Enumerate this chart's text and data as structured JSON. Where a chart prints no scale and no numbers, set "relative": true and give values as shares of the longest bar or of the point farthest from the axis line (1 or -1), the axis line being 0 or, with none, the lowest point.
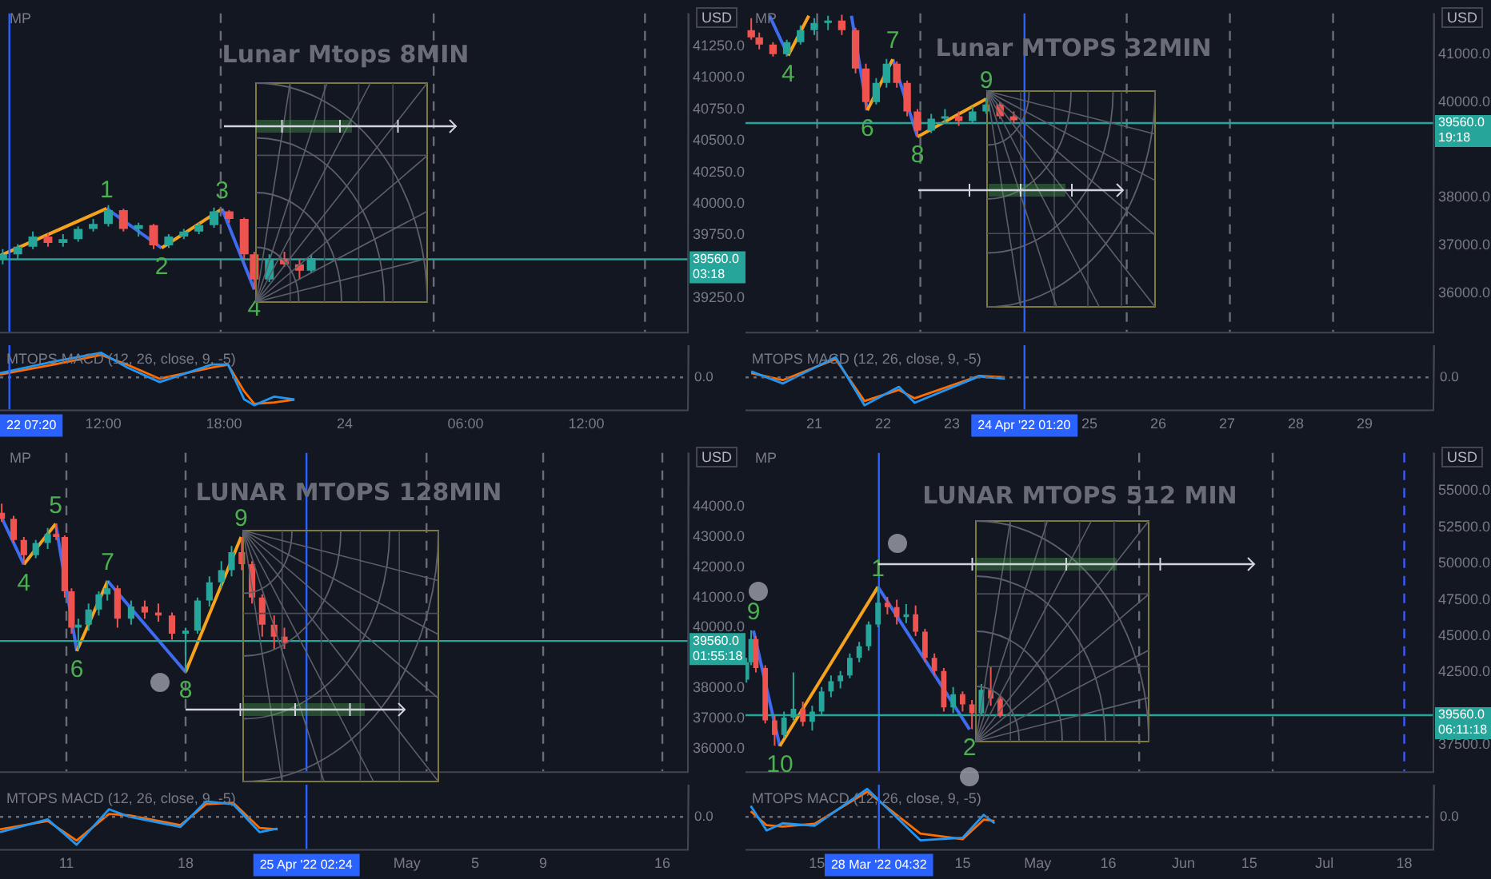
{
  "chart_data": [
    {
      "type": "candlestick",
      "title": "Lunar Mtops 8MIN",
      "ylabel": "USD",
      "tick_labels": "y",
      "x": [
        "2022-04-23T07:00",
        "2022-04-23T07:45",
        "2022-04-23T08:30",
        "2022-04-23T09:15",
        "2022-04-23T10:00",
        "2022-04-23T10:45",
        "2022-04-23T11:30",
        "2022-04-23T12:15",
        "2022-04-23T13:00",
        "2022-04-23T13:45",
        "2022-04-23T14:30",
        "2022-04-23T15:15",
        "2022-04-23T16:00",
        "2022-04-23T16:45",
        "2022-04-23T17:30",
        "2022-04-23T18:15",
        "2022-04-23T19:00",
        "2022-04-23T19:30",
        "2022-04-23T20:15",
        "2022-04-23T21:00",
        "2022-04-23T21:45",
        "2022-04-23T22:20"
      ],
      "ohlc": [
        [
          39560,
          39640,
          39520,
          39600
        ],
        [
          39600,
          39680,
          39560,
          39660
        ],
        [
          39660,
          39780,
          39640,
          39740
        ],
        [
          39740,
          39770,
          39660,
          39690
        ],
        [
          39690,
          39760,
          39660,
          39720
        ],
        [
          39720,
          39820,
          39700,
          39800
        ],
        [
          39800,
          39880,
          39780,
          39840
        ],
        [
          39840,
          39990,
          39820,
          39950
        ],
        [
          39950,
          39960,
          39780,
          39800
        ],
        [
          39800,
          39850,
          39740,
          39830
        ],
        [
          39830,
          39840,
          39640,
          39670
        ],
        [
          39670,
          39760,
          39650,
          39740
        ],
        [
          39740,
          39800,
          39720,
          39780
        ],
        [
          39780,
          39850,
          39760,
          39830
        ],
        [
          39830,
          39970,
          39810,
          39940
        ],
        [
          39940,
          39950,
          39850,
          39880
        ],
        [
          39880,
          39890,
          39560,
          39600
        ],
        [
          39600,
          39620,
          39320,
          39400
        ],
        [
          39400,
          39600,
          39380,
          39560
        ],
        [
          39560,
          39620,
          39500,
          39520
        ],
        [
          39520,
          39560,
          39400,
          39470
        ],
        [
          39470,
          39600,
          39450,
          39570
        ]
      ],
      "series": [
        {
          "type": "line",
          "color": "#f7a21b",
          "x": [
            "2022-04-23T06:52",
            "2022-04-23T12:10",
            "2022-04-23T13:00",
            "2022-04-23T14:54",
            "2022-04-23T17:54"
          ],
          "values": [
            39588,
            39963,
            null,
            39650,
            39960
          ]
        },
        {
          "type": "line",
          "color": "#3d6cf0",
          "x": [
            "2022-04-23T12:10",
            "2022-04-23T14:54",
            "2022-04-23T16:00",
            "2022-04-23T17:54",
            "2022-04-23T19:30"
          ],
          "values": [
            39963,
            39650,
            null,
            39960,
            39320
          ]
        }
      ],
      "xlim": [
        "2022-04-23T06:52",
        "2022-04-24T17:03"
      ],
      "ylim": [
        38985,
        41510
      ],
      "yticks": [
        {
          "value": 39250,
          "label": "39250.0"
        },
        {
          "value": 39750,
          "label": "39750.0"
        },
        {
          "value": 40000,
          "label": "40000.0"
        },
        {
          "value": 40250,
          "label": "40250.0"
        },
        {
          "value": 40500,
          "label": "40500.0"
        },
        {
          "value": 40750,
          "label": "40750.0"
        },
        {
          "value": 41000,
          "label": "41000.0"
        },
        {
          "value": 41250,
          "label": "41250.0"
        }
      ],
      "ref_lines": [
        {
          "axis": "x",
          "value": "2022-04-23T17:50",
          "line_style": "dashed"
        },
        {
          "axis": "x",
          "value": "2022-04-24T04:25",
          "line_style": "dashed"
        },
        {
          "axis": "x",
          "value": "2022-04-24T14:55",
          "line_style": "dashed"
        },
        {
          "axis": "x",
          "value": "2022-04-23T07:20",
          "color": "#2962ff"
        },
        {
          "axis": "y",
          "value": 39560,
          "label": "39560.0\n03:18",
          "color": "#26a69a"
        }
      ],
      "annotations": [
        "MP",
        {
          "text": "1",
          "x": "2022-04-23T12:10",
          "y": 39963
        },
        {
          "text": "2",
          "x": "2022-04-23T14:54",
          "y": 39650
        },
        {
          "text": "3",
          "x": "2022-04-23T17:54",
          "y": 39960
        },
        {
          "text": "4",
          "x": "2022-04-23T19:30",
          "y": 39320
        }
      ]
    },
    {
      "type": "line",
      "title": "MTOPS MACD (12, 26, close, 9, -5)",
      "relative": true,
      "xlim": [
        "2022-04-23T06:52",
        "2022-04-24T17:03"
      ],
      "xticks": [
        {
          "value": "2022-04-23T12:00",
          "label": "12:00"
        },
        {
          "value": "2022-04-23T18:00",
          "label": "18:00"
        },
        {
          "value": "2022-04-24T00:00",
          "label": "24"
        },
        {
          "value": "2022-04-24T06:00",
          "label": "06:00"
        },
        {
          "value": "2022-04-24T12:00",
          "label": "12:00"
        }
      ],
      "series": [
        {
          "color": "#2196f3",
          "x": [
            "2022-04-23T06:52",
            "2022-04-23T09:30",
            "2022-04-23T11:54",
            "2022-04-23T13:12",
            "2022-04-23T14:48",
            "2022-04-23T17:24",
            "2022-04-23T18:12",
            "2022-04-23T19:00",
            "2022-04-23T19:30",
            "2022-04-23T20:30",
            "2022-04-23T21:30"
          ],
          "values": [
            0.15,
            0.56,
            0.88,
            0.35,
            -0.17,
            0.46,
            0.46,
            -0.79,
            -1.0,
            -0.69,
            -0.79
          ]
        },
        {
          "color": "#ff6d00",
          "x": [
            "2022-04-23T06:52",
            "2022-04-23T09:30",
            "2022-04-23T11:54",
            "2022-04-23T13:12",
            "2022-04-23T14:48",
            "2022-04-23T17:24",
            "2022-04-23T18:12",
            "2022-04-23T19:00",
            "2022-04-23T19:30",
            "2022-04-23T20:30",
            "2022-04-23T21:30"
          ],
          "values": [
            0.1,
            0.45,
            0.8,
            0.45,
            -0.05,
            0.35,
            0.45,
            -0.5,
            -0.95,
            -0.9,
            -0.8
          ]
        }
      ],
      "ref_lines": [
        {
          "axis": "y",
          "value": 0,
          "label": "0.0",
          "line_style": "dotted"
        },
        {
          "axis": "x",
          "value": "2022-04-23T07:20",
          "label": "22 07:20",
          "color": "#2962ff"
        }
      ]
    },
    {
      "type": "candlestick",
      "title": "Lunar MTOPS 32MIN",
      "ylabel": "USD",
      "tick_labels": "y",
      "x": [
        "2022-04-20T02:00",
        "2022-04-20T04:48",
        "2022-04-20T09:36",
        "2022-04-20T14:24",
        "2022-04-20T19:12",
        "2022-04-21T00:00",
        "2022-04-21T04:48",
        "2022-04-21T09:36",
        "2022-04-21T14:24",
        "2022-04-21T18:00",
        "2022-04-21T21:36",
        "2022-04-22T01:12",
        "2022-04-22T04:48",
        "2022-04-22T08:24",
        "2022-04-22T12:00",
        "2022-04-22T16:48",
        "2022-04-22T21:36",
        "2022-04-23T02:24",
        "2022-04-23T07:12",
        "2022-04-23T12:00",
        "2022-04-23T16:48",
        "2022-04-23T21:36"
      ],
      "ohlc": [
        [
          41500,
          41750,
          41300,
          41350
        ],
        [
          41350,
          41450,
          41100,
          41200
        ],
        [
          41200,
          41250,
          40950,
          41000
        ],
        [
          41000,
          41300,
          40950,
          41250
        ],
        [
          41250,
          41600,
          41200,
          41500
        ],
        [
          41500,
          41750,
          41400,
          41650
        ],
        [
          41650,
          41800,
          41500,
          41700
        ],
        [
          41700,
          41820,
          41400,
          41500
        ],
        [
          41500,
          41550,
          40600,
          40700
        ],
        [
          40700,
          40800,
          39830,
          40000
        ],
        [
          40000,
          40500,
          39950,
          40400
        ],
        [
          40400,
          40900,
          40300,
          40800
        ],
        [
          40800,
          40850,
          40300,
          40400
        ],
        [
          40400,
          40450,
          39700,
          39800
        ],
        [
          39800,
          39850,
          39280,
          39400
        ],
        [
          39400,
          39750,
          39350,
          39650
        ],
        [
          39650,
          39850,
          39550,
          39700
        ],
        [
          39700,
          39800,
          39500,
          39600
        ],
        [
          39600,
          39900,
          39550,
          39800
        ],
        [
          39800,
          40070,
          39750,
          39950
        ],
        [
          39950,
          40000,
          39650,
          39700
        ],
        [
          39700,
          39800,
          39550,
          39620
        ]
      ],
      "series": [
        {
          "type": "line",
          "color": "#f7a21b",
          "x": [
            "2022-04-20T14:53",
            "2022-04-20T22:05",
            "2022-04-21T06:00",
            "2022-04-21T18:29",
            "2022-04-22T03:22",
            "2022-04-22T08:00",
            "2022-04-22T12:00",
            "2022-04-23T12:00"
          ],
          "values": [
            40970,
            41800,
            null,
            39826,
            40894,
            null,
            39274,
            40065
          ]
        },
        {
          "type": "line",
          "color": "#3d6cf0",
          "x": [
            "2022-04-20T08:24",
            "2022-04-20T14:53",
            "2022-04-21T03:00",
            "2022-04-21T12:58",
            "2022-04-21T18:29",
            "2022-04-22T00:00",
            "2022-04-22T03:22",
            "2022-04-22T12:00"
          ],
          "values": [
            41800,
            40970,
            null,
            41800,
            39826,
            null,
            40894,
            39274
          ]
        }
      ],
      "xlim": [
        "2022-04-20T00:00",
        "2022-04-30T00:00"
      ],
      "ylim": [
        35200,
        41850
      ],
      "yticks": [
        {
          "value": 36000,
          "label": "36000.0"
        },
        {
          "value": 37000,
          "label": "37000.0"
        },
        {
          "value": 38000,
          "label": "38000.0"
        },
        {
          "value": 40000,
          "label": "40000.0"
        },
        {
          "value": 41000,
          "label": "41000.0"
        }
      ],
      "ref_lines": [
        {
          "axis": "x",
          "value": "2022-04-21T01:00",
          "line_style": "dashed"
        },
        {
          "axis": "x",
          "value": "2022-04-22T13:00",
          "line_style": "dashed"
        },
        {
          "axis": "x",
          "value": "2022-04-25T13:00",
          "line_style": "dashed"
        },
        {
          "axis": "x",
          "value": "2022-04-27T01:00",
          "line_style": "dashed"
        },
        {
          "axis": "x",
          "value": "2022-04-28T13:00",
          "line_style": "dashed"
        },
        {
          "axis": "x",
          "value": "2022-04-24T01:20",
          "color": "#2962ff"
        },
        {
          "axis": "y",
          "value": 39560,
          "label": "39560.0\n19:18",
          "color": "#26a69a"
        }
      ],
      "annotations": [
        "MP",
        {
          "text": "4",
          "x": "2022-04-20T14:53",
          "y": 40970
        },
        {
          "text": "6",
          "x": "2022-04-21T18:29",
          "y": 39826
        },
        {
          "text": "7",
          "x": "2022-04-22T03:22",
          "y": 40894
        },
        {
          "text": "8",
          "x": "2022-04-22T12:00",
          "y": 39274
        },
        {
          "text": "9",
          "x": "2022-04-23T12:00",
          "y": 40065
        }
      ]
    },
    {
      "type": "line",
      "title": "MTOPS MACD (12, 26, close, 9, -5)",
      "relative": true,
      "xlim": [
        "2022-04-20T00:00",
        "2022-04-30T00:00"
      ],
      "xticks": [
        {
          "value": "2022-04-21",
          "label": "21"
        },
        {
          "value": "2022-04-22",
          "label": "22"
        },
        {
          "value": "2022-04-23",
          "label": "23"
        },
        {
          "value": "2022-04-25",
          "label": "25"
        },
        {
          "value": "2022-04-26",
          "label": "26"
        },
        {
          "value": "2022-04-27",
          "label": "27"
        },
        {
          "value": "2022-04-28",
          "label": "28"
        },
        {
          "value": "2022-04-29",
          "label": "29"
        }
      ],
      "series": [
        {
          "color": "#2196f3",
          "x": [
            "2022-04-20T02:00",
            "2022-04-20T13:00",
            "2022-04-21T07:26",
            "2022-04-21T17:31",
            "2022-04-22T05:31",
            "2022-04-22T11:02",
            "2022-04-23T09:22",
            "2022-04-23T18:29"
          ],
          "values": [
            0.21,
            -0.22,
            0.72,
            -1.0,
            -0.34,
            -0.91,
            0.03,
            -0.05
          ]
        },
        {
          "color": "#ff6d00",
          "x": [
            "2022-04-20T02:00",
            "2022-04-20T13:00",
            "2022-04-21T07:26",
            "2022-04-21T17:31",
            "2022-04-22T05:31",
            "2022-04-22T11:02",
            "2022-04-23T09:22",
            "2022-04-23T18:29"
          ],
          "values": [
            0.15,
            -0.1,
            0.65,
            -0.85,
            -0.45,
            -0.75,
            0.05,
            0.0
          ]
        }
      ],
      "ref_lines": [
        {
          "axis": "y",
          "value": 0,
          "label": "0.0",
          "line_style": "dotted"
        },
        {
          "axis": "x",
          "value": "2022-04-24T01:20",
          "label": "24 Apr '22 01:20",
          "color": "#2962ff"
        }
      ]
    },
    {
      "type": "candlestick",
      "title": "LUNAR MTOPS 128MIN",
      "ylabel": "USD",
      "tick_labels": "y",
      "x": [
        "2022-04-07T04:48",
        "2022-04-07T21:36",
        "2022-04-08T12:00",
        "2022-04-09T04:48",
        "2022-04-09T21:36",
        "2022-04-10T09:36",
        "2022-04-10T21:36",
        "2022-04-11T07:12",
        "2022-04-11T16:48",
        "2022-04-12T07:12",
        "2022-04-12T21:36",
        "2022-04-13T09:36",
        "2022-04-14T00:00",
        "2022-04-14T19:12",
        "2022-04-15T14:24",
        "2022-04-16T09:36",
        "2022-04-17T04:48",
        "2022-04-18T00:00",
        "2022-04-18T16:48",
        "2022-04-19T09:36",
        "2022-04-20T02:24",
        "2022-04-20T16:48",
        "2022-04-21T07:12",
        "2022-04-21T21:36",
        "2022-04-22T12:00",
        "2022-04-23T04:48",
        "2022-04-23T19:12"
      ],
      "ohlc": [
        [
          43800,
          44100,
          43500,
          43600
        ],
        [
          43600,
          43700,
          42800,
          42900
        ],
        [
          42900,
          43000,
          42100,
          42400
        ],
        [
          42400,
          42900,
          42300,
          42800
        ],
        [
          42800,
          43300,
          42600,
          43100
        ],
        [
          43100,
          43450,
          42900,
          43000
        ],
        [
          43000,
          43050,
          41000,
          41200
        ],
        [
          41200,
          41300,
          39800,
          40000
        ],
        [
          40000,
          40300,
          39250,
          40100
        ],
        [
          40100,
          40800,
          39900,
          40600
        ],
        [
          40600,
          41200,
          40400,
          41100
        ],
        [
          41100,
          41550,
          40900,
          41300
        ],
        [
          41300,
          41400,
          40000,
          40300
        ],
        [
          40300,
          40900,
          40100,
          40700
        ],
        [
          40700,
          40900,
          40300,
          40500
        ],
        [
          40500,
          40800,
          40200,
          40400
        ],
        [
          40400,
          40500,
          39600,
          39800
        ],
        [
          39800,
          40000,
          38550,
          39900
        ],
        [
          39900,
          41000,
          39800,
          40900
        ],
        [
          40900,
          41700,
          40700,
          41500
        ],
        [
          41500,
          42200,
          41300,
          41900
        ],
        [
          41900,
          42700,
          41700,
          42500
        ],
        [
          42500,
          43000,
          41900,
          42100
        ],
        [
          42100,
          42200,
          40800,
          41000
        ],
        [
          41000,
          41100,
          39700,
          40100
        ],
        [
          40100,
          40400,
          39300,
          39700
        ],
        [
          39700,
          40000,
          39300,
          39500
        ]
      ],
      "series": [
        {
          "type": "line",
          "color": "#f7a21b",
          "x": [
            "2022-04-08T12:00",
            "2022-04-10T08:53",
            "2022-04-11T00:00",
            "2022-04-11T14:38",
            "2022-04-13T10:05",
            "2022-04-15T00:00",
            "2022-04-18T00:00",
            "2022-04-21T06:14"
          ],
          "values": [
            42092,
            43437,
            null,
            39228,
            41544,
            null,
            38534,
            43000
          ]
        },
        {
          "type": "line",
          "color": "#3d6cf0",
          "x": [
            "2022-04-07T02:24",
            "2022-04-08T12:00",
            "2022-04-09T00:00",
            "2022-04-10T08:53",
            "2022-04-11T14:38",
            "2022-04-12T00:00",
            "2022-04-13T10:05",
            "2022-04-18T00:00"
          ],
          "values": [
            43757,
            42092,
            null,
            43437,
            39228,
            null,
            41544,
            38534
          ]
        }
      ],
      "xlim": [
        "2022-04-07T02:24",
        "2022-05-17T12:00"
      ],
      "ylim": [
        35250,
        45780
      ],
      "yticks": [
        {
          "value": 36000,
          "label": "36000.0"
        },
        {
          "value": 37000,
          "label": "37000.0"
        },
        {
          "value": 38000,
          "label": "38000.0"
        },
        {
          "value": 40000,
          "label": "40000.0"
        },
        {
          "value": 41000,
          "label": "41000.0"
        },
        {
          "value": 42000,
          "label": "42000.0"
        },
        {
          "value": 43000,
          "label": "43000.0"
        },
        {
          "value": 44000,
          "label": "44000.0"
        }
      ],
      "ref_lines": [
        {
          "axis": "x",
          "value": "2022-04-11",
          "line_style": "dashed"
        },
        {
          "axis": "x",
          "value": "2022-04-18",
          "line_style": "dashed"
        },
        {
          "axis": "x",
          "value": "2022-05-02T03:36",
          "line_style": "dashed"
        },
        {
          "axis": "x",
          "value": "2022-05-09",
          "line_style": "dashed"
        },
        {
          "axis": "x",
          "value": "2022-05-16",
          "line_style": "dashed"
        },
        {
          "axis": "x",
          "value": "2022-04-25T02:24",
          "color": "#2962ff"
        },
        {
          "axis": "y",
          "value": 39560,
          "label": "39560.0\n01:55:18",
          "color": "#26a69a"
        }
      ],
      "annotations": [
        "MP",
        {
          "text": "4",
          "x": "2022-04-08T12:00",
          "y": 42092
        },
        {
          "text": "5",
          "x": "2022-04-10T08:53",
          "y": 43437
        },
        {
          "text": "6",
          "x": "2022-04-11T14:38",
          "y": 39228
        },
        {
          "text": "7",
          "x": "2022-04-13T10:05",
          "y": 41544
        },
        {
          "text": "8",
          "x": "2022-04-18T00:00",
          "y": 38534
        },
        {
          "text": "9",
          "x": "2022-04-21T06:14",
          "y": 43000
        }
      ]
    },
    {
      "type": "line",
      "title": "MTOPS MACD (12, 26, close, 9, -5)",
      "relative": true,
      "xlim": [
        "2022-04-07T02:24",
        "2022-05-17T12:00"
      ],
      "xticks": [
        {
          "value": "2022-04-11",
          "label": "11"
        },
        {
          "value": "2022-04-18",
          "label": "18"
        },
        {
          "value": "2022-05-01",
          "label": "May"
        },
        {
          "value": "2022-05-05",
          "label": "5"
        },
        {
          "value": "2022-05-09",
          "label": "9"
        },
        {
          "value": "2022-05-16",
          "label": "16"
        }
      ],
      "series": [
        {
          "color": "#2196f3",
          "x": [
            "2022-04-07T02:24",
            "2022-04-09T21:36",
            "2022-04-11T14:24",
            "2022-04-13T12:00",
            "2022-04-14T16:48",
            "2022-04-17T16:48",
            "2022-04-19T04:48",
            "2022-04-20T19:12",
            "2022-04-22T08:24",
            "2022-04-23T09:36"
          ],
          "values": [
            -0.55,
            -0.09,
            -1.0,
            0.27,
            0.0,
            -0.36,
            0.55,
            0.45,
            -0.55,
            -0.42
          ]
        },
        {
          "color": "#ff6d00",
          "x": [
            "2022-04-07T02:24",
            "2022-04-09T21:36",
            "2022-04-11T14:24",
            "2022-04-13T12:00",
            "2022-04-14T16:48",
            "2022-04-17T16:48",
            "2022-04-19T04:48",
            "2022-04-20T19:12",
            "2022-04-22T08:24",
            "2022-04-23T09:36"
          ],
          "values": [
            -0.45,
            -0.15,
            -0.85,
            0.1,
            0.05,
            -0.3,
            0.45,
            0.5,
            -0.4,
            -0.45
          ]
        }
      ],
      "ref_lines": [
        {
          "axis": "y",
          "value": 0,
          "label": "0.0",
          "line_style": "dotted"
        },
        {
          "axis": "x",
          "value": "2022-04-25T02:24",
          "label": "25 Apr '22 02:24",
          "color": "#2962ff"
        }
      ]
    },
    {
      "type": "candlestick",
      "title": "LUNAR MTOPS 512 MIN",
      "ylabel": "USD",
      "tick_labels": "y",
      "x": [
        "2022-02-28",
        "2022-03-01",
        "2022-03-02",
        "2022-03-04",
        "2022-03-06",
        "2022-03-08",
        "2022-03-10",
        "2022-03-12",
        "2022-03-14",
        "2022-03-16",
        "2022-03-18",
        "2022-03-20",
        "2022-03-22",
        "2022-03-24",
        "2022-03-26",
        "2022-03-28",
        "2022-03-30",
        "2022-04-01",
        "2022-04-03",
        "2022-04-05",
        "2022-04-07",
        "2022-04-09",
        "2022-04-11",
        "2022-04-13",
        "2022-04-15",
        "2022-04-17",
        "2022-04-19",
        "2022-04-21",
        "2022-04-23"
      ],
      "ohlc": [
        [
          42000,
          43500,
          41800,
          43200
        ],
        [
          43200,
          45400,
          43000,
          44800
        ],
        [
          44800,
          45000,
          42500,
          42800
        ],
        [
          42800,
          43000,
          39000,
          39200
        ],
        [
          39200,
          39500,
          37450,
          38200
        ],
        [
          38200,
          39800,
          38000,
          39400
        ],
        [
          39400,
          42500,
          39200,
          40000
        ],
        [
          40000,
          40500,
          38800,
          39100
        ],
        [
          39100,
          40200,
          38500,
          39800
        ],
        [
          39800,
          41500,
          39600,
          41200
        ],
        [
          41200,
          42300,
          40800,
          41900
        ],
        [
          41900,
          42600,
          41400,
          42300
        ],
        [
          42300,
          43800,
          42100,
          43500
        ],
        [
          43500,
          44600,
          43200,
          44300
        ],
        [
          44300,
          46000,
          44000,
          45800
        ],
        [
          45800,
          48400,
          45600,
          47300
        ],
        [
          47300,
          47700,
          46500,
          47000
        ],
        [
          47000,
          47500,
          45800,
          46300
        ],
        [
          46300,
          47200,
          45900,
          46500
        ],
        [
          46500,
          47100,
          45000,
          45300
        ],
        [
          45300,
          45500,
          43200,
          43500
        ],
        [
          43500,
          43800,
          42300,
          42600
        ],
        [
          42600,
          42800,
          39800,
          40100
        ],
        [
          40100,
          41500,
          39700,
          41000
        ],
        [
          41000,
          41200,
          39800,
          40300
        ],
        [
          40300,
          40600,
          38600,
          39700
        ],
        [
          39700,
          41700,
          39500,
          41300
        ],
        [
          41300,
          42900,
          40200,
          40700
        ],
        [
          40700,
          40900,
          39400,
          39560
        ]
      ],
      "series": [
        {
          "type": "line",
          "color": "#f7a21b",
          "x": [
            "2022-03-07T02:24",
            "2022-03-28T00:00"
          ],
          "values": [
            37430,
            48390
          ]
        },
        {
          "type": "line",
          "color": "#3d6cf0",
          "x": [
            "2022-03-01T12:00",
            "2022-03-07T02:24",
            "2022-03-15T00:00",
            "2022-03-28T00:00",
            "2022-04-16T12:00"
          ],
          "values": [
            45375,
            37430,
            null,
            48390,
            38580
          ]
        }
      ],
      "xlim": [
        "2022-02-27T19:12",
        "2022-07-24T05:00"
      ],
      "ylim": [
        35700,
        57600
      ],
      "yticks": [
        {
          "value": 37500,
          "label": "37500.0"
        },
        {
          "value": 42500,
          "label": "42500.0"
        },
        {
          "value": 45000,
          "label": "45000.0"
        },
        {
          "value": 47500,
          "label": "47500.0"
        },
        {
          "value": 50000,
          "label": "50000.0"
        },
        {
          "value": 52500,
          "label": "52500.0"
        },
        {
          "value": 55000,
          "label": "55000.0"
        }
      ],
      "ref_lines": [
        {
          "axis": "x",
          "value": "2022-05-22T14:00",
          "line_style": "dashed"
        },
        {
          "axis": "x",
          "value": "2022-06-20",
          "line_style": "dashed"
        },
        {
          "axis": "x",
          "value": "2022-07-18",
          "line_style": "dashed",
          "color": "#3d5afe"
        },
        {
          "axis": "x",
          "value": "2022-03-28T04:32",
          "color": "#2962ff"
        },
        {
          "axis": "y",
          "value": 39560,
          "label": "39560.0\n06:11:18",
          "color": "#26a69a"
        }
      ],
      "annotations": [
        "MP",
        {
          "text": "9",
          "x": "2022-03-01T12:00",
          "y": 45375
        },
        {
          "text": "10",
          "x": "2022-03-07T02:24",
          "y": 37430
        },
        {
          "text": "1",
          "x": "2022-03-28T00:00",
          "y": 48390
        },
        {
          "text": "2",
          "x": "2022-04-16T12:00",
          "y": 38580
        }
      ]
    },
    {
      "type": "line",
      "title": "MTOPS MACD (12, 26, close, 9, -5)",
      "relative": true,
      "xlim": [
        "2022-02-27T19:12",
        "2022-07-24T05:00"
      ],
      "xticks": [
        {
          "value": "2022-03-15",
          "label": "15"
        },
        {
          "value": "2022-04-15",
          "label": "15"
        },
        {
          "value": "2022-05-01",
          "label": "May"
        },
        {
          "value": "2022-05-16",
          "label": "16"
        },
        {
          "value": "2022-06-01",
          "label": "Jun"
        },
        {
          "value": "2022-06-15",
          "label": "15"
        },
        {
          "value": "2022-07-01",
          "label": "Jul"
        },
        {
          "value": "2022-07-18",
          "label": "18"
        }
      ],
      "series": [
        {
          "color": "#2196f3",
          "x": [
            "2022-02-28T22:00",
            "2022-03-04T07:00",
            "2022-03-07T17:00",
            "2022-03-14T12:00",
            "2022-03-25T17:00",
            "2022-04-06T00:00",
            "2022-04-15T00:00",
            "2022-04-19T12:00",
            "2022-04-21T19:00"
          ],
          "values": [
            0.39,
            -0.49,
            -0.23,
            -0.32,
            1.0,
            -0.84,
            -0.75,
            0.07,
            -0.23
          ]
        },
        {
          "color": "#ff6d00",
          "x": [
            "2022-02-28T22:00",
            "2022-03-04T07:00",
            "2022-03-07T17:00",
            "2022-03-14T12:00",
            "2022-03-25T17:00",
            "2022-04-06T00:00",
            "2022-04-15T00:00",
            "2022-04-19T12:00",
            "2022-04-21T19:00"
          ],
          "values": [
            0.2,
            -0.3,
            -0.35,
            -0.25,
            0.9,
            -0.6,
            -0.8,
            -0.1,
            -0.15
          ]
        }
      ],
      "ref_lines": [
        {
          "axis": "y",
          "value": 0,
          "label": "0.0",
          "line_style": "dotted"
        },
        {
          "axis": "x",
          "value": "2022-03-28T04:32",
          "label": "28 Mar '22 04:32",
          "color": "#2962ff"
        }
      ]
    }
  ]
}
